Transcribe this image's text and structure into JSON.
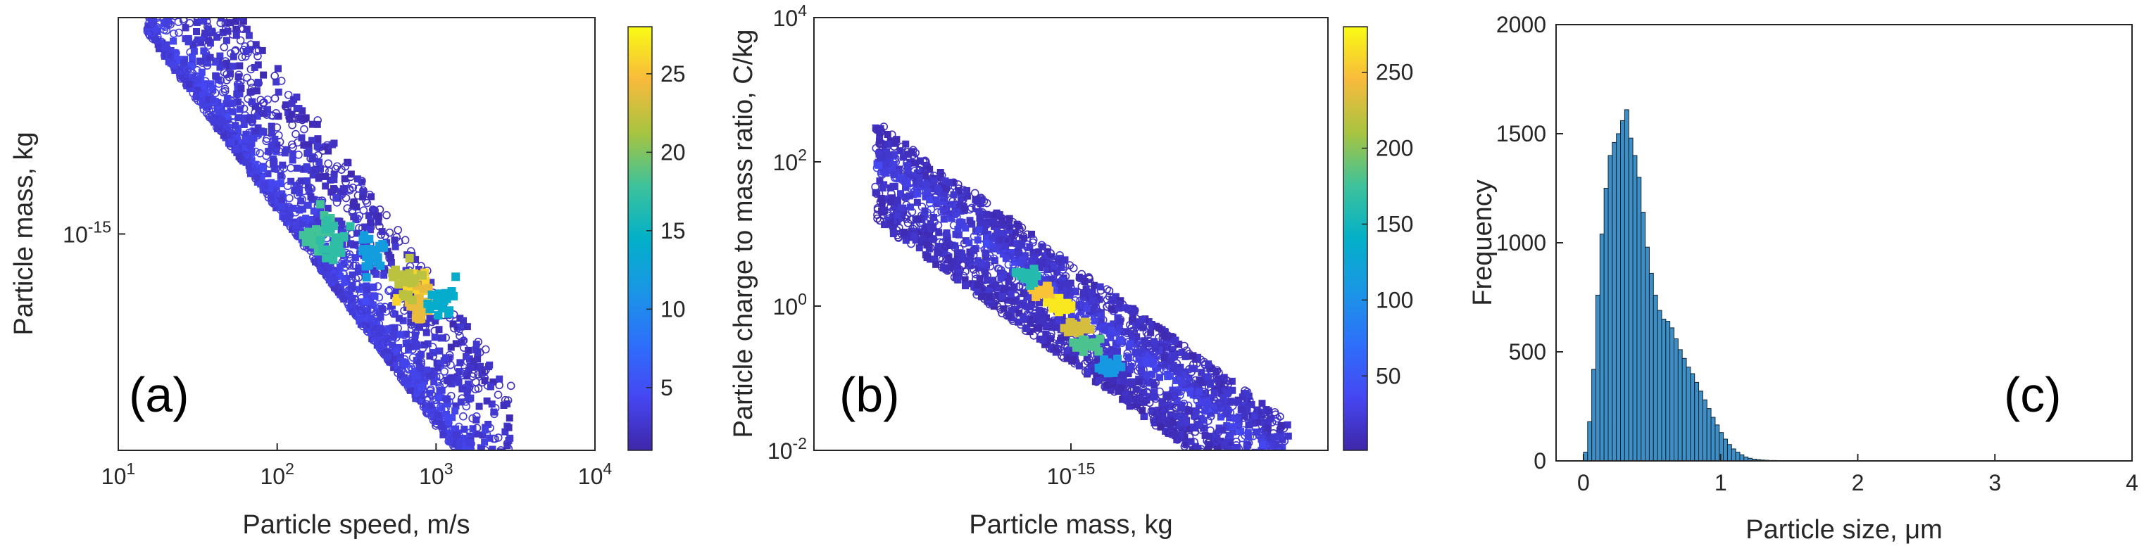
{
  "chart_data": [
    {
      "type": "scatter",
      "panel_label": "(a)",
      "xlabel": "Particle speed, m/s",
      "ylabel": "Particle mass, kg",
      "xscale": "log",
      "yscale": "log",
      "xlim": [
        10,
        10000
      ],
      "ylim": [
        1e-16,
        1e-14
      ],
      "xticks": [
        {
          "base": "10",
          "exp": "1",
          "value": 10
        },
        {
          "base": "10",
          "exp": "2",
          "value": 100
        },
        {
          "base": "10",
          "exp": "3",
          "value": 1000
        },
        {
          "base": "10",
          "exp": "4",
          "value": 10000
        }
      ],
      "yticks": [
        {
          "base": "10",
          "exp": "-15",
          "value": 1e-15
        }
      ],
      "colorbar": {
        "range": [
          1,
          28
        ],
        "ticks": [
          {
            "label": "5",
            "value": 5
          },
          {
            "label": "10",
            "value": 10
          },
          {
            "label": "15",
            "value": 15
          },
          {
            "label": "20",
            "value": 20
          },
          {
            "label": "25",
            "value": 25
          }
        ]
      },
      "band": {
        "slope": -1.0,
        "anchor_x": 100,
        "anchor_y": 1.7e-15,
        "upper_dex": 0.55,
        "lower_dex": 0.12,
        "x_range": [
          15,
          3000
        ]
      },
      "hotspots": [
        {
          "x": 750,
          "y": 5.5e-16,
          "value": 26
        },
        {
          "x": 820,
          "y": 4.6e-16,
          "value": 24
        },
        {
          "x": 650,
          "y": 6.2e-16,
          "value": 22
        },
        {
          "x": 190,
          "y": 1.05e-15,
          "value": 18
        },
        {
          "x": 230,
          "y": 9.5e-16,
          "value": 17
        },
        {
          "x": 1100,
          "y": 5e-16,
          "value": 14
        },
        {
          "x": 400,
          "y": 8e-16,
          "value": 12
        }
      ]
    },
    {
      "type": "scatter",
      "panel_label": "(b)",
      "xlabel": "Particle mass, kg",
      "ylabel": "Particle charge to mass ratio, C/kg",
      "xscale": "log",
      "yscale": "log",
      "xlim": [
        1e-17,
        1e-13
      ],
      "ylim": [
        0.01,
        10000
      ],
      "xticks": [
        {
          "base": "10",
          "exp": "-15",
          "value": 1e-15
        }
      ],
      "yticks": [
        {
          "base": "10",
          "exp": "-2",
          "value": 0.01
        },
        {
          "base": "10",
          "exp": "0",
          "value": 1
        },
        {
          "base": "10",
          "exp": "2",
          "value": 100
        },
        {
          "base": "10",
          "exp": "4",
          "value": 10000
        }
      ],
      "colorbar": {
        "range": [
          1,
          280
        ],
        "ticks": [
          {
            "label": "50",
            "value": 50
          },
          {
            "label": "100",
            "value": 100
          },
          {
            "label": "150",
            "value": 150
          },
          {
            "label": "200",
            "value": 200
          },
          {
            "label": "250",
            "value": 250
          }
        ]
      },
      "band": {
        "slope": -1.3,
        "anchor_x": 1e-15,
        "anchor_y": 1.0,
        "upper_dex": 0.6,
        "lower_dex": 0.8,
        "x_range": [
          3e-17,
          5e-14
        ]
      },
      "hotspots": [
        {
          "x": 6e-16,
          "y": 1.6,
          "value": 250
        },
        {
          "x": 8e-16,
          "y": 1.0,
          "value": 270
        },
        {
          "x": 1.05e-15,
          "y": 0.5,
          "value": 230
        },
        {
          "x": 1.3e-15,
          "y": 0.3,
          "value": 180
        },
        {
          "x": 4.5e-16,
          "y": 2.6,
          "value": 160
        },
        {
          "x": 2e-15,
          "y": 0.15,
          "value": 110
        }
      ]
    },
    {
      "type": "bar",
      "subtype": "histogram",
      "panel_label": "(c)",
      "xlabel": "Particle size, μm",
      "ylabel": "Frequency",
      "xlim": [
        -0.2,
        4.0
      ],
      "ylim": [
        0,
        2000
      ],
      "xticks": [
        {
          "label": "0",
          "value": 0
        },
        {
          "label": "1",
          "value": 1
        },
        {
          "label": "2",
          "value": 2
        },
        {
          "label": "3",
          "value": 3
        },
        {
          "label": "4",
          "value": 4
        }
      ],
      "yticks": [
        {
          "label": "0",
          "value": 0
        },
        {
          "label": "500",
          "value": 500
        },
        {
          "label": "1000",
          "value": 1000
        },
        {
          "label": "1500",
          "value": 1500
        },
        {
          "label": "2000",
          "value": 2000
        }
      ],
      "bin_width": 0.03,
      "bin_start": 0.0,
      "values": [
        40,
        180,
        420,
        760,
        1040,
        1250,
        1400,
        1460,
        1500,
        1560,
        1610,
        1480,
        1400,
        1300,
        1140,
        980,
        860,
        760,
        690,
        650,
        640,
        610,
        560,
        510,
        470,
        430,
        400,
        360,
        320,
        280,
        240,
        200,
        165,
        130,
        100,
        75,
        55,
        40,
        28,
        18,
        12,
        8,
        6,
        4,
        3,
        2,
        2,
        1,
        1,
        1,
        1,
        1,
        1,
        1,
        1
      ]
    }
  ]
}
